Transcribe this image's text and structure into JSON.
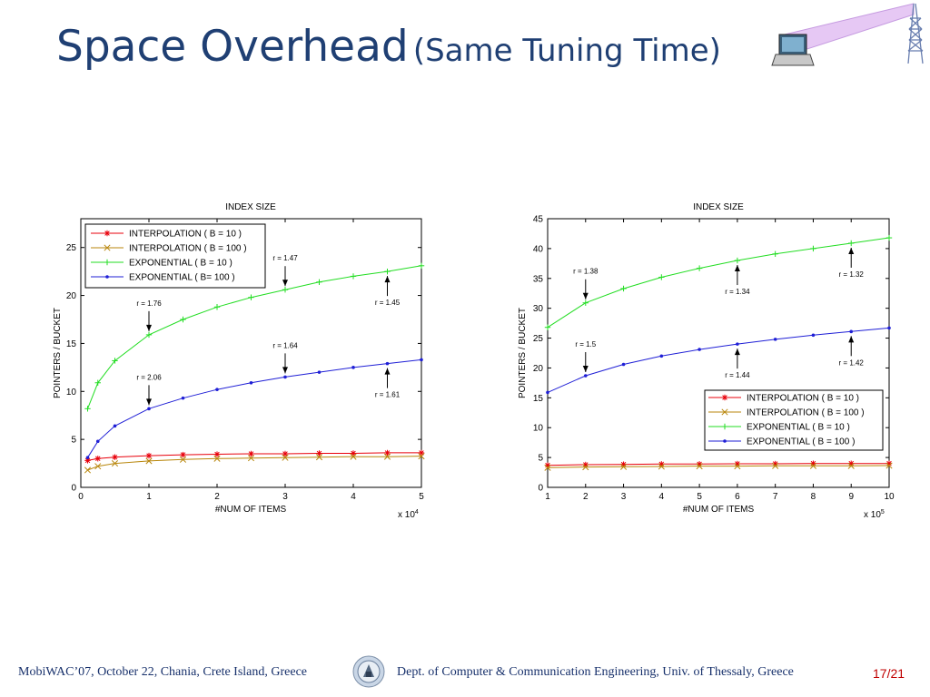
{
  "slide": {
    "title": "Space Overhead",
    "subtitle": "(Same Tuning Time)",
    "footer_left": "MobiWAC’07, October 22, Chania, Crete Island, Greece",
    "footer_right": "Dept. of Computer & Communication Engineering, Univ. of Thessaly, Greece",
    "page_number": "17/21",
    "logo_icon": "university-seal-icon",
    "decor_icons": [
      "laptop-icon",
      "antenna-tower-icon"
    ]
  },
  "chart_data": [
    {
      "type": "line",
      "title": "INDEX SIZE",
      "xlabel": "#NUM OF ITEMS",
      "ylabel": "POINTERS / BUCKET",
      "x_multiplier": "x 10^4",
      "xlim": [
        0,
        5
      ],
      "ylim": [
        0,
        28
      ],
      "xticks": [
        0,
        1,
        2,
        3,
        4,
        5
      ],
      "yticks": [
        0,
        5,
        10,
        15,
        20,
        25
      ],
      "grid": false,
      "legend_position": "top-left",
      "series": [
        {
          "name": "INTERPOLATION ( B = 10 )",
          "color": "#e8000b",
          "marker": "star",
          "x": [
            0.1,
            0.25,
            0.5,
            1,
            1.5,
            2,
            2.5,
            3,
            3.5,
            4,
            4.5,
            5
          ],
          "y": [
            2.8,
            3.0,
            3.15,
            3.3,
            3.4,
            3.45,
            3.5,
            3.5,
            3.55,
            3.55,
            3.6,
            3.6
          ]
        },
        {
          "name": "INTERPOLATION ( B = 100 )",
          "color": "#b8860b",
          "marker": "x",
          "x": [
            0.1,
            0.25,
            0.5,
            1,
            1.5,
            2,
            2.5,
            3,
            3.5,
            4,
            4.5,
            5
          ],
          "y": [
            1.8,
            2.2,
            2.5,
            2.75,
            2.9,
            3.0,
            3.05,
            3.1,
            3.15,
            3.2,
            3.2,
            3.25
          ]
        },
        {
          "name": "EXPONENTIAL ( B = 10 )",
          "color": "#22dd22",
          "marker": "plus",
          "x": [
            0.1,
            0.25,
            0.5,
            1,
            1.5,
            2,
            2.5,
            3,
            3.5,
            4,
            4.5,
            5
          ],
          "y": [
            8.2,
            10.9,
            13.2,
            15.9,
            17.5,
            18.8,
            19.8,
            20.6,
            21.4,
            22.0,
            22.5,
            23.1
          ]
        },
        {
          "name": "EXPONENTIAL ( B= 100 )",
          "color": "#1f1fd6",
          "marker": "dot",
          "x": [
            0.1,
            0.25,
            0.5,
            1,
            1.5,
            2,
            2.5,
            3,
            3.5,
            4,
            4.5,
            5
          ],
          "y": [
            3.1,
            4.8,
            6.4,
            8.2,
            9.3,
            10.2,
            10.9,
            11.5,
            12.0,
            12.5,
            12.9,
            13.3
          ]
        }
      ],
      "annotations": [
        {
          "text": "r = 1.76",
          "x": 1.0,
          "y": 15.9,
          "arrow": "down"
        },
        {
          "text": "r = 2.06",
          "x": 1.0,
          "y": 8.2,
          "arrow": "down"
        },
        {
          "text": "r = 1.47",
          "x": 3.0,
          "y": 20.6,
          "arrow": "down"
        },
        {
          "text": "r = 1.64",
          "x": 3.0,
          "y": 11.5,
          "arrow": "down"
        },
        {
          "text": "r = 1.45",
          "x": 4.5,
          "y": 22.5,
          "arrow": "up"
        },
        {
          "text": "r = 1.61",
          "x": 4.5,
          "y": 12.9,
          "arrow": "up"
        }
      ]
    },
    {
      "type": "line",
      "title": "INDEX SIZE",
      "xlabel": "#NUM OF ITEMS",
      "ylabel": "POINTERS / BUCKET",
      "x_multiplier": "x 10^5",
      "xlim": [
        1,
        10
      ],
      "ylim": [
        0,
        45
      ],
      "xticks": [
        1,
        2,
        3,
        4,
        5,
        6,
        7,
        8,
        9,
        10
      ],
      "yticks": [
        0,
        5,
        10,
        15,
        20,
        25,
        30,
        35,
        40,
        45
      ],
      "grid": false,
      "legend_position": "bottom-right",
      "series": [
        {
          "name": "INTERPOLATION ( B = 10 )",
          "color": "#e8000b",
          "marker": "star",
          "x": [
            1,
            2,
            3,
            4,
            5,
            6,
            7,
            8,
            9,
            10
          ],
          "y": [
            3.7,
            3.8,
            3.85,
            3.9,
            3.9,
            3.95,
            3.95,
            4.0,
            4.0,
            4.0
          ]
        },
        {
          "name": "INTERPOLATION ( B = 100 )",
          "color": "#b8860b",
          "marker": "x",
          "x": [
            1,
            2,
            3,
            4,
            5,
            6,
            7,
            8,
            9,
            10
          ],
          "y": [
            3.3,
            3.4,
            3.45,
            3.5,
            3.55,
            3.55,
            3.6,
            3.6,
            3.6,
            3.65
          ]
        },
        {
          "name": "EXPONENTIAL ( B = 10 )",
          "color": "#22dd22",
          "marker": "plus",
          "x": [
            1,
            2,
            3,
            4,
            5,
            6,
            7,
            8,
            9,
            10
          ],
          "y": [
            26.8,
            30.9,
            33.3,
            35.2,
            36.7,
            38.0,
            39.1,
            40.0,
            40.9,
            41.8
          ]
        },
        {
          "name": "EXPONENTIAL ( B = 100 )",
          "color": "#1f1fd6",
          "marker": "dot",
          "x": [
            1,
            2,
            3,
            4,
            5,
            6,
            7,
            8,
            9,
            10
          ],
          "y": [
            15.9,
            18.7,
            20.6,
            22.0,
            23.1,
            24.0,
            24.8,
            25.5,
            26.1,
            26.7
          ]
        }
      ],
      "annotations": [
        {
          "text": "r = 1.38",
          "x": 2,
          "y": 30.9,
          "arrow": "down"
        },
        {
          "text": "r = 1.5",
          "x": 2,
          "y": 18.7,
          "arrow": "down"
        },
        {
          "text": "r = 1.34",
          "x": 6,
          "y": 38.0,
          "arrow": "up"
        },
        {
          "text": "r = 1.44",
          "x": 6,
          "y": 24.0,
          "arrow": "up"
        },
        {
          "text": "r = 1.32",
          "x": 9,
          "y": 40.9,
          "arrow": "up"
        },
        {
          "text": "r = 1.42",
          "x": 9,
          "y": 26.1,
          "arrow": "up"
        }
      ]
    }
  ]
}
